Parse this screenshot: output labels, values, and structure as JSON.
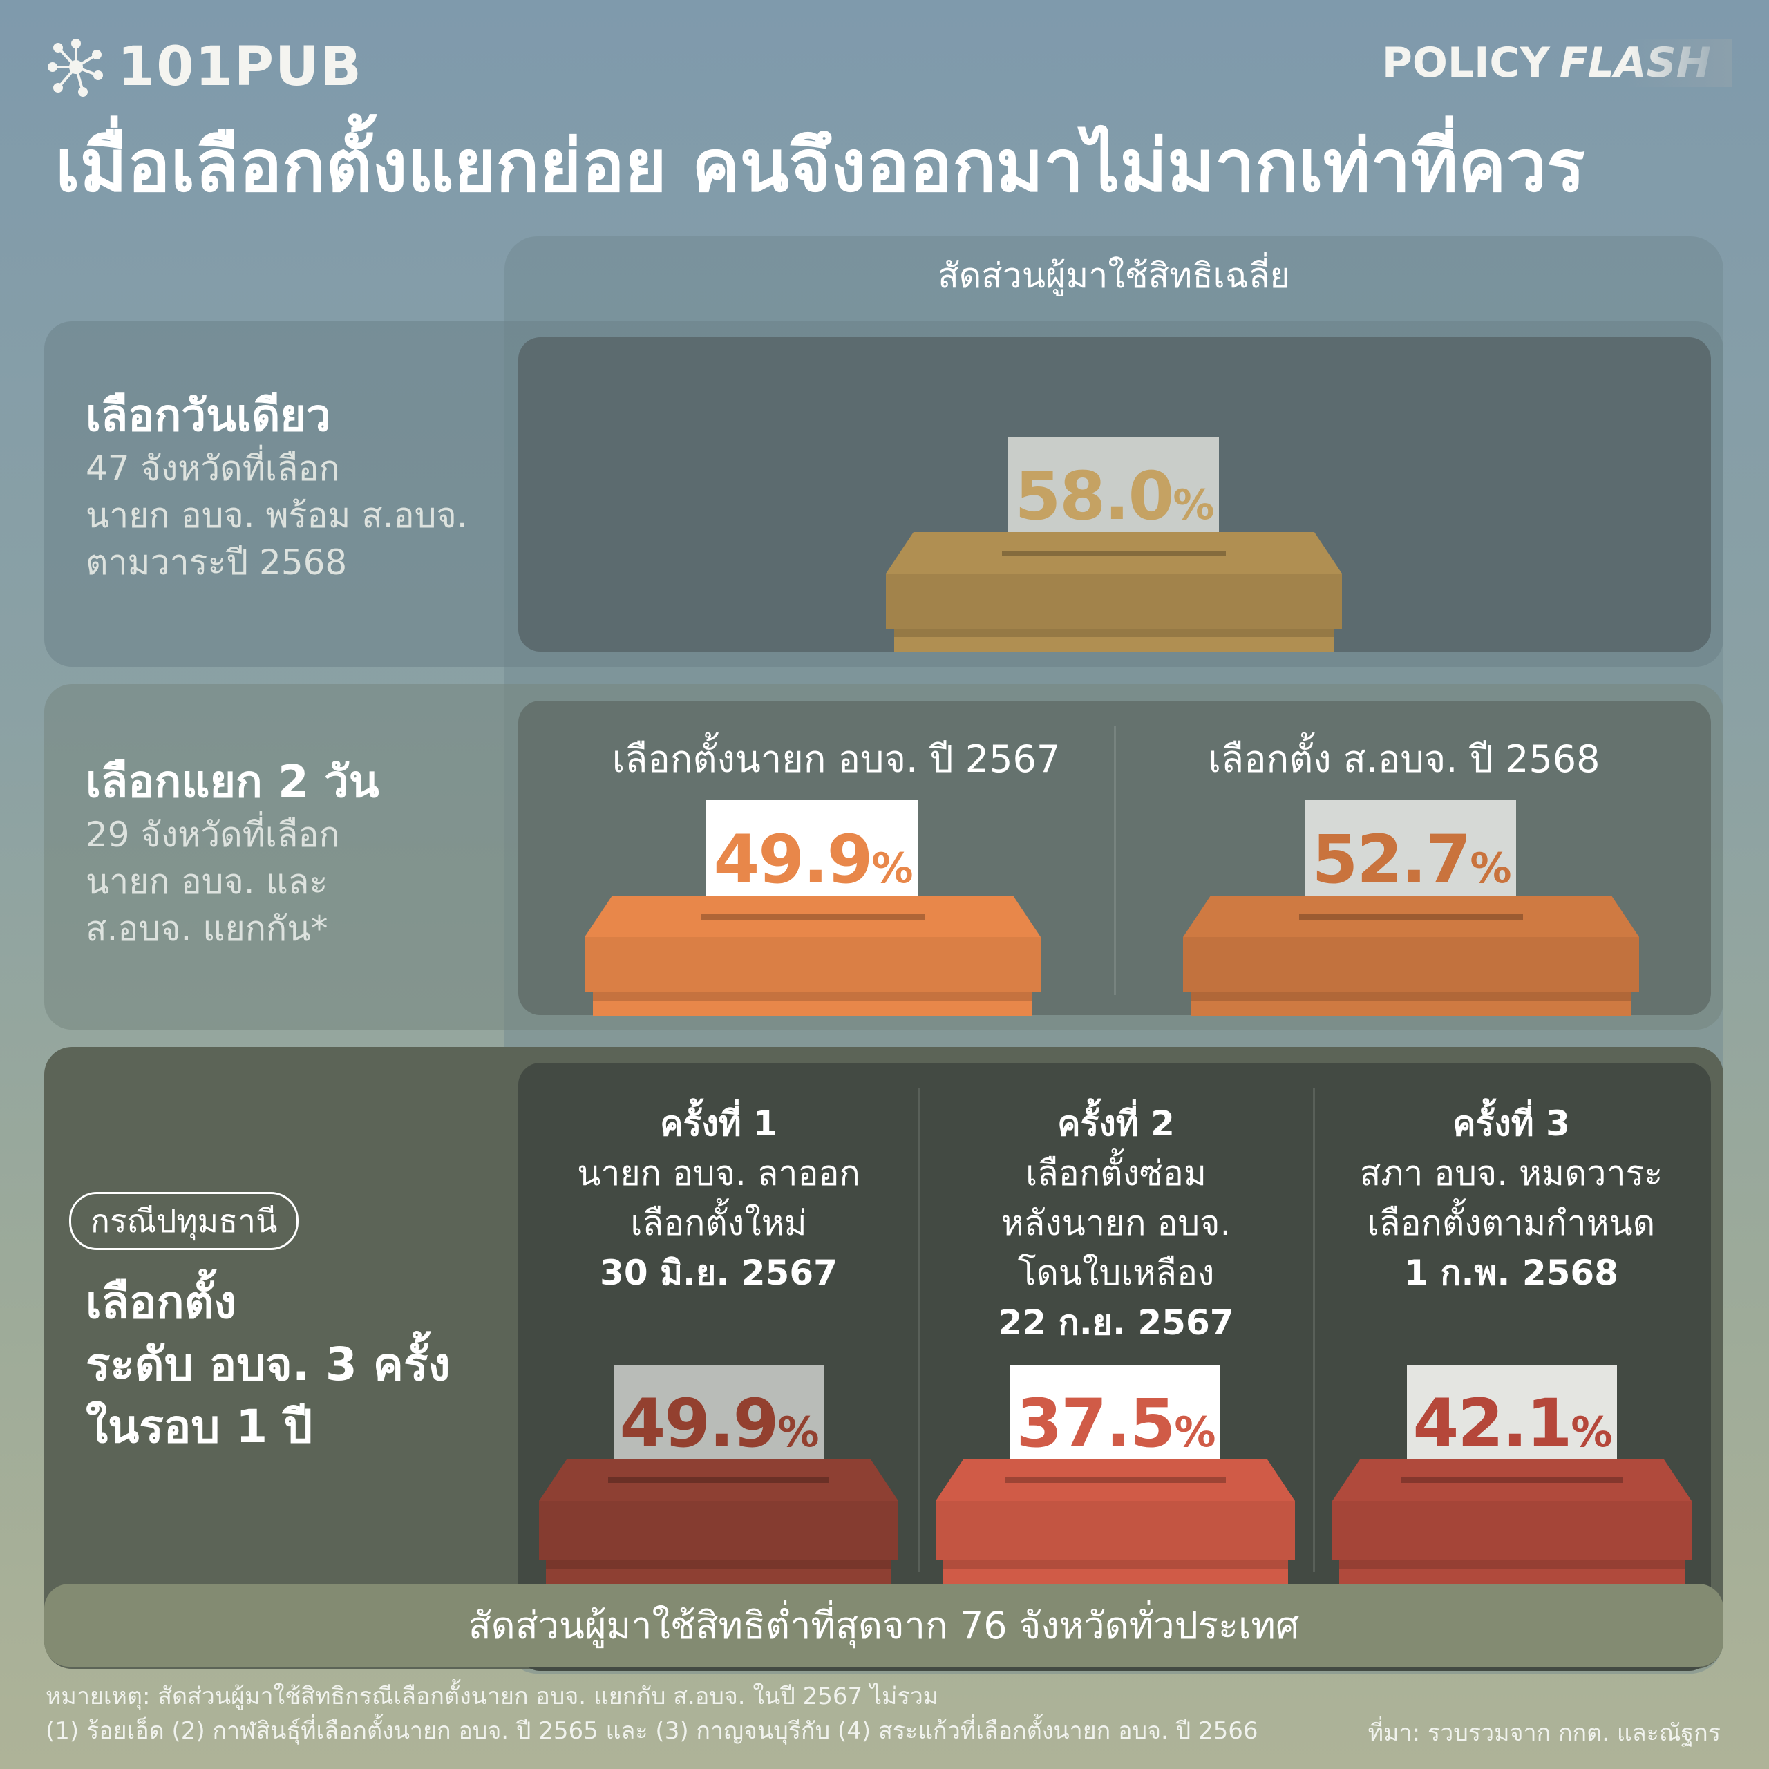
{
  "brand": {
    "name": "101PUB",
    "logo_icon": "network-node-icon"
  },
  "series": {
    "part1": "POLICY",
    "part2": "FLASH"
  },
  "headline": "เมื่อเลือกตั้งแยกย่อย คนจึงออกมาไม่มากเท่าที่ควร",
  "column_header": "สัดส่วนผู้มาใช้สิทธิเฉลี่ย",
  "rows": {
    "one_day": {
      "title": "เลือกวันเดียว",
      "sub": [
        "47 จังหวัดที่เลือก",
        "นายก อบจ. พร้อม ส.อบจ.",
        "ตามวาระปี 2568"
      ],
      "ballot": {
        "value": "58.0",
        "unit": "%",
        "color": "#b08f52",
        "text_color": "#c5a263"
      }
    },
    "two_days": {
      "title": "เลือกแยก 2 วัน",
      "sub": [
        "29 จังหวัดที่เลือก",
        "นายก อบจ. และ",
        "ส.อบจ. แยกกัน*"
      ],
      "columns": [
        {
          "label": "เลือกตั้งนายก อบจ. ปี 2567",
          "value": "49.9",
          "unit": "%",
          "color": "#e8874a",
          "text_color": "#e8874a"
        },
        {
          "label": "เลือกตั้ง ส.อบจ. ปี 2568",
          "value": "52.7",
          "unit": "%",
          "color": "#cf7a42",
          "text_color": "#c9733d"
        }
      ]
    },
    "pathum": {
      "pill": "กรณีปทุมธานี",
      "title": [
        "เลือกตั้ง",
        "ระดับ อบจ. 3 ครั้ง",
        "ในรอบ 1 ปี"
      ],
      "cases": [
        {
          "head": "ครั้งที่ 1",
          "desc": [
            "นายก อบจ. ลาออก",
            "เลือกตั้งใหม่"
          ],
          "date": "30 มิ.ย. 2567",
          "value": "49.9",
          "unit": "%",
          "color": "#8e4033",
          "text_color": "#93402f"
        },
        {
          "head": "ครั้งที่ 2",
          "desc": [
            "เลือกตั้งซ่อม",
            "หลังนายก อบจ.",
            "โดนใบเหลือง"
          ],
          "date": "22 ก.ย. 2567",
          "value": "37.5",
          "unit": "%",
          "color": "#d05b47",
          "text_color": "#d05b47"
        },
        {
          "head": "ครั้งที่ 3",
          "desc": [
            "สภา อบจ. หมดวาระ",
            "เลือกตั้งตามกำหนด"
          ],
          "date": "1 ก.พ. 2568",
          "value": "42.1",
          "unit": "%",
          "color": "#b04a3c",
          "text_color": "#b5473a"
        }
      ]
    }
  },
  "bottom_bar": "สัดส่วนผู้มาใช้สิทธิต่ำที่สุดจาก 76 จังหวัดทั่วประเทศ",
  "note": {
    "line1": "หมายเหตุ: สัดส่วนผู้มาใช้สิทธิกรณีเลือกตั้งนายก อบจ. แยกกับ ส.อบจ. ในปี 2567 ไม่รวม",
    "line2": "(1) ร้อยเอ็ด (2) กาฬสินธุ์ที่เลือกตั้งนายก อบจ. ปี 2565 และ (3) กาญจนบุรีกับ (4) สระแก้วที่เลือกตั้งนายก อบจ. ปี 2566"
  },
  "source": "ที่มา: รวบรวมจาก กกต. และณัฐกร"
}
